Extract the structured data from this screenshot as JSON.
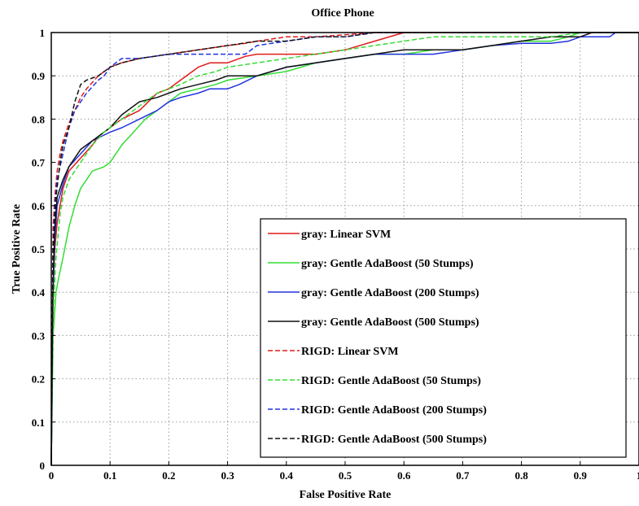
{
  "chart_data": {
    "type": "line",
    "title": "Office Phone",
    "xlabel": "False Positive Rate",
    "ylabel": "True Positive Rate",
    "xlim": [
      0,
      1
    ],
    "ylim": [
      0,
      1
    ],
    "grid": true,
    "legend_position": "bottom-right",
    "x_ticks": [
      "0",
      "0.1",
      "0.2",
      "0.3",
      "0.4",
      "0.5",
      "0.6",
      "0.7",
      "0.8",
      "0.9",
      "1"
    ],
    "y_ticks": [
      "0",
      "0.1",
      "0.2",
      "0.3",
      "0.4",
      "0.5",
      "0.6",
      "0.7",
      "0.8",
      "0.9",
      "1"
    ],
    "series": [
      {
        "name": "gray: Linear SVM",
        "color": "#e01b1b",
        "dash": "solid",
        "x": [
          0,
          0.003,
          0.006,
          0.01,
          0.015,
          0.02,
          0.03,
          0.05,
          0.07,
          0.08,
          0.1,
          0.12,
          0.15,
          0.18,
          0.2,
          0.22,
          0.25,
          0.27,
          0.3,
          0.33,
          0.35,
          0.4,
          0.45,
          0.5,
          0.55,
          0.6,
          0.65,
          0.7,
          0.8,
          0.9,
          1.0
        ],
        "y": [
          0,
          0.4,
          0.5,
          0.56,
          0.6,
          0.64,
          0.68,
          0.71,
          0.74,
          0.76,
          0.78,
          0.8,
          0.82,
          0.86,
          0.87,
          0.89,
          0.92,
          0.93,
          0.93,
          0.945,
          0.95,
          0.95,
          0.95,
          0.96,
          0.98,
          1.0,
          1.0,
          1.0,
          1.0,
          1.0,
          1.0
        ]
      },
      {
        "name": "gray: Gentle AdaBoost (50 Stumps)",
        "color": "#33dd33",
        "dash": "solid",
        "x": [
          0,
          0.003,
          0.008,
          0.012,
          0.02,
          0.03,
          0.04,
          0.05,
          0.06,
          0.07,
          0.09,
          0.1,
          0.12,
          0.14,
          0.16,
          0.18,
          0.2,
          0.22,
          0.25,
          0.28,
          0.3,
          0.35,
          0.4,
          0.45,
          0.5,
          0.55,
          0.6,
          0.65,
          0.7,
          0.75,
          0.8,
          0.85,
          0.88,
          0.9,
          1.0
        ],
        "y": [
          0,
          0.3,
          0.4,
          0.43,
          0.48,
          0.55,
          0.6,
          0.64,
          0.66,
          0.68,
          0.69,
          0.7,
          0.74,
          0.77,
          0.8,
          0.82,
          0.84,
          0.86,
          0.87,
          0.88,
          0.89,
          0.9,
          0.91,
          0.93,
          0.94,
          0.95,
          0.95,
          0.96,
          0.96,
          0.97,
          0.98,
          0.98,
          0.99,
          1.0,
          1.0
        ]
      },
      {
        "name": "gray: Gentle AdaBoost (200 Stumps)",
        "color": "#2233dd",
        "dash": "solid",
        "x": [
          0,
          0.003,
          0.006,
          0.01,
          0.02,
          0.03,
          0.05,
          0.07,
          0.1,
          0.12,
          0.15,
          0.18,
          0.2,
          0.22,
          0.25,
          0.27,
          0.3,
          0.32,
          0.35,
          0.4,
          0.45,
          0.5,
          0.55,
          0.6,
          0.65,
          0.7,
          0.75,
          0.8,
          0.85,
          0.88,
          0.9,
          0.95,
          0.96,
          1.0
        ],
        "y": [
          0,
          0.4,
          0.52,
          0.6,
          0.65,
          0.69,
          0.72,
          0.75,
          0.77,
          0.78,
          0.8,
          0.82,
          0.84,
          0.85,
          0.86,
          0.87,
          0.87,
          0.88,
          0.9,
          0.92,
          0.93,
          0.94,
          0.95,
          0.95,
          0.95,
          0.96,
          0.97,
          0.975,
          0.975,
          0.98,
          0.99,
          0.99,
          1.0,
          1.0
        ]
      },
      {
        "name": "gray: Gentle AdaBoost (500 Stumps)",
        "color": "#111111",
        "dash": "solid",
        "x": [
          0,
          0.003,
          0.006,
          0.01,
          0.02,
          0.03,
          0.05,
          0.07,
          0.08,
          0.1,
          0.12,
          0.15,
          0.18,
          0.2,
          0.22,
          0.25,
          0.28,
          0.3,
          0.35,
          0.4,
          0.45,
          0.5,
          0.55,
          0.6,
          0.65,
          0.7,
          0.75,
          0.8,
          0.85,
          0.9,
          0.92,
          1.0
        ],
        "y": [
          0,
          0.42,
          0.55,
          0.62,
          0.66,
          0.69,
          0.73,
          0.75,
          0.76,
          0.78,
          0.81,
          0.84,
          0.85,
          0.86,
          0.87,
          0.88,
          0.89,
          0.9,
          0.9,
          0.92,
          0.93,
          0.94,
          0.95,
          0.96,
          0.96,
          0.96,
          0.97,
          0.98,
          0.99,
          0.99,
          1.0,
          1.0
        ]
      },
      {
        "name": "RIGD: Linear SVM",
        "color": "#e01b1b",
        "dash": "dashed",
        "x": [
          0,
          0.003,
          0.006,
          0.01,
          0.015,
          0.02,
          0.03,
          0.04,
          0.05,
          0.06,
          0.08,
          0.1,
          0.12,
          0.15,
          0.2,
          0.25,
          0.3,
          0.33,
          0.35,
          0.4,
          0.45,
          0.5,
          0.55,
          0.6,
          1.0
        ],
        "y": [
          0,
          0.55,
          0.62,
          0.68,
          0.72,
          0.75,
          0.79,
          0.82,
          0.85,
          0.87,
          0.9,
          0.92,
          0.93,
          0.94,
          0.95,
          0.96,
          0.97,
          0.975,
          0.98,
          0.99,
          0.99,
          0.995,
          1.0,
          1.0,
          1.0
        ]
      },
      {
        "name": "RIGD: Gentle AdaBoost (50 Stumps)",
        "color": "#33dd33",
        "dash": "dashed",
        "x": [
          0,
          0.003,
          0.008,
          0.015,
          0.02,
          0.03,
          0.05,
          0.07,
          0.09,
          0.1,
          0.12,
          0.15,
          0.18,
          0.2,
          0.22,
          0.25,
          0.28,
          0.3,
          0.35,
          0.4,
          0.45,
          0.5,
          0.55,
          0.6,
          0.65,
          0.7,
          0.75,
          0.8,
          0.85,
          0.9,
          0.95,
          1.0
        ],
        "y": [
          0,
          0.35,
          0.48,
          0.58,
          0.62,
          0.66,
          0.7,
          0.74,
          0.77,
          0.78,
          0.8,
          0.83,
          0.86,
          0.87,
          0.88,
          0.9,
          0.91,
          0.92,
          0.93,
          0.94,
          0.95,
          0.96,
          0.97,
          0.98,
          0.99,
          0.99,
          0.99,
          0.99,
          0.99,
          1.0,
          1.0,
          1.0
        ]
      },
      {
        "name": "RIGD: Gentle AdaBoost (200 Stumps)",
        "color": "#2233dd",
        "dash": "dashed",
        "x": [
          0,
          0.003,
          0.006,
          0.01,
          0.02,
          0.03,
          0.04,
          0.05,
          0.06,
          0.08,
          0.09,
          0.1,
          0.11,
          0.12,
          0.15,
          0.2,
          0.25,
          0.3,
          0.33,
          0.35,
          0.4,
          0.45,
          0.5,
          0.55,
          0.6,
          1.0
        ],
        "y": [
          0,
          0.5,
          0.6,
          0.66,
          0.72,
          0.78,
          0.82,
          0.84,
          0.86,
          0.89,
          0.9,
          0.92,
          0.93,
          0.94,
          0.94,
          0.95,
          0.95,
          0.95,
          0.95,
          0.97,
          0.98,
          0.99,
          0.99,
          1.0,
          1.0,
          1.0
        ]
      },
      {
        "name": "RIGD: Gentle AdaBoost (500 Stumps)",
        "color": "#111111",
        "dash": "dashed",
        "x": [
          0,
          0.003,
          0.008,
          0.015,
          0.02,
          0.03,
          0.04,
          0.05,
          0.06,
          0.08,
          0.1,
          0.12,
          0.15,
          0.2,
          0.25,
          0.3,
          0.35,
          0.4,
          0.45,
          0.5,
          0.55,
          0.6,
          0.65,
          0.7,
          1.0
        ],
        "y": [
          0,
          0.5,
          0.62,
          0.7,
          0.74,
          0.78,
          0.84,
          0.88,
          0.89,
          0.9,
          0.92,
          0.93,
          0.94,
          0.95,
          0.96,
          0.97,
          0.98,
          0.98,
          0.99,
          0.99,
          1.0,
          1.0,
          1.0,
          1.0,
          1.0
        ]
      }
    ]
  }
}
